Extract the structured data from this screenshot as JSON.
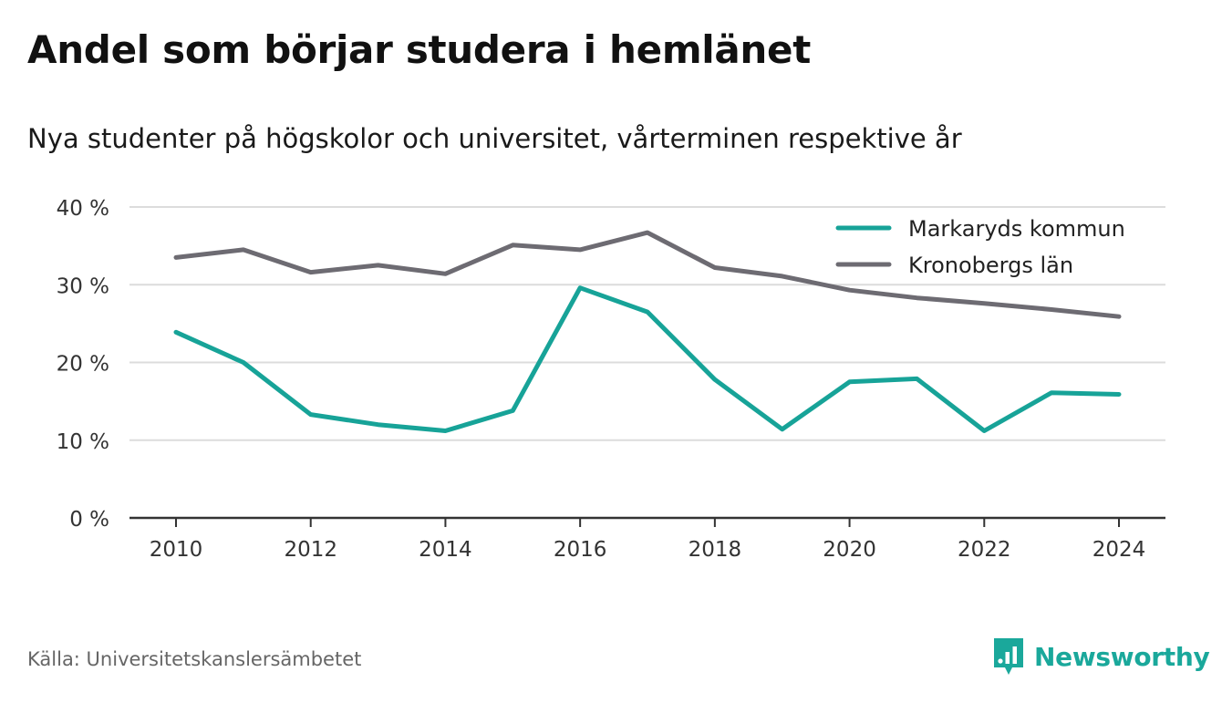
{
  "title": "Andel som börjar studera i hemlänet",
  "subtitle": "Nya studenter på högskolor och universitet, vårterminen respektive år",
  "source": "Källa: Universitetskanslersämbetet",
  "brand": {
    "name": "Newsworthy",
    "icon": "newsworthy-logo-icon",
    "color": "#1aa89b"
  },
  "chart_data": {
    "type": "line",
    "x": [
      2010,
      2011,
      2012,
      2013,
      2014,
      2015,
      2016,
      2017,
      2018,
      2019,
      2020,
      2021,
      2022,
      2023,
      2024
    ],
    "xticks": [
      2010,
      2012,
      2014,
      2016,
      2018,
      2020,
      2022,
      2024
    ],
    "xtick_labels": [
      "2010",
      "2012",
      "2014",
      "2016",
      "2018",
      "2020",
      "2022",
      "2024"
    ],
    "ylim": [
      0,
      40
    ],
    "yticks": [
      0,
      10,
      20,
      30,
      40
    ],
    "ytick_labels": [
      "0 %",
      "10 %",
      "20 %",
      "30 %",
      "40 %"
    ],
    "grid": true,
    "legend_position": "top-right",
    "series": [
      {
        "name": "Markaryds kommun",
        "color": "#17a398",
        "values": [
          23.9,
          20.0,
          13.3,
          12.0,
          11.2,
          13.8,
          29.6,
          26.5,
          17.8,
          11.4,
          17.5,
          17.9,
          11.2,
          16.1,
          15.9
        ]
      },
      {
        "name": "Kronobergs län",
        "color": "#6d6b72",
        "values": [
          33.5,
          34.5,
          31.6,
          32.5,
          31.4,
          35.1,
          34.5,
          36.7,
          32.2,
          31.1,
          29.3,
          28.3,
          27.6,
          26.8,
          25.9
        ]
      }
    ]
  }
}
